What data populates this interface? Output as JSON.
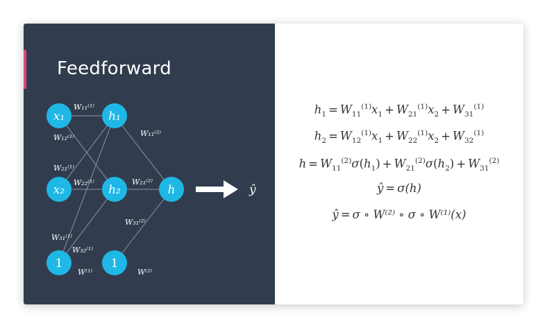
{
  "slide": {
    "title": "Feedforward",
    "colors": {
      "panel": "#313d4e",
      "accent": "#e0497a",
      "node": "#1fb8e6",
      "edge": "#8c96a4",
      "arrow": "#ffffff"
    }
  },
  "network": {
    "nodes": {
      "x1": "x₁",
      "x2": "x₂",
      "bias1": "1",
      "h1": "h₁",
      "h2": "h₂",
      "bias2": "1",
      "out": "h"
    },
    "weights": {
      "w11_1": "W₁₁⁽¹⁾",
      "w12_1": "W₁₂⁽¹⁾",
      "w21_1": "W₂₁⁽¹⁾",
      "w22_1": "W₂₂⁽¹⁾",
      "w31_1": "W₃₁⁽¹⁾",
      "w32_1": "W₃₂⁽¹⁾",
      "w11_2": "W₁₁⁽²⁾",
      "w21_2": "W₂₁⁽²⁾",
      "w31_2": "W₃₁⁽²⁾",
      "W1": "W⁽¹⁾",
      "W2": "W⁽²⁾"
    },
    "output_label": "ŷ"
  },
  "equations": {
    "eq1": {
      "lhs": "h",
      "lhs_sub": "1"
    },
    "eq2": {
      "lhs": "h",
      "lhs_sub": "2"
    },
    "eq3": {
      "lhs": "h"
    },
    "eq4": {
      "lhs": "ŷ",
      "rhs": "σ(h)"
    },
    "eq5": {
      "lhs": "ŷ",
      "rhs": "σ ∘ W⁽²⁾ ∘ σ ∘ W⁽¹⁾(x)"
    }
  }
}
